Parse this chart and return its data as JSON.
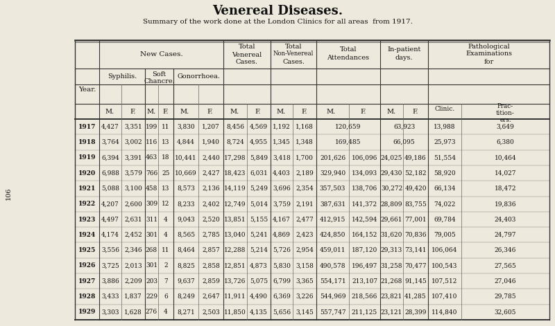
{
  "title": "Venereal Diseases.",
  "subtitle": "Summary of the work done at the London Clinics for all areas  from 1917.",
  "bg_color": "#ede9dc",
  "text_color": "#111111",
  "side_number": "106",
  "years": [
    "1917",
    "1918",
    "1919",
    "1920",
    "1921",
    "1922",
    "1923",
    "1924",
    "1925",
    "1926",
    "1927",
    "1928",
    "1929"
  ],
  "columns": {
    "syphilis_m": [
      "4,427",
      "3,764",
      "6,394",
      "6,988",
      "5,088",
      "4,207",
      "4,497",
      "4,174",
      "3,556",
      "3,725",
      "3,886",
      "3,433",
      "3,303"
    ],
    "syphilis_f": [
      "3,351",
      "3,002",
      "3,391",
      "3,579",
      "3,100",
      "2,600",
      "2,631",
      "2,452",
      "2,346",
      "2,013",
      "2,209",
      "1,837",
      "1,628"
    ],
    "soft_m": [
      "199",
      "116",
      "463",
      "766",
      "458",
      "309",
      "311",
      "301",
      "268",
      "301",
      "203",
      "229",
      "276"
    ],
    "soft_f": [
      "11",
      "13",
      "18",
      "25",
      "13",
      "12",
      "4",
      "4",
      "11",
      "2",
      "7",
      "6",
      "4"
    ],
    "gonorrhoea_m": [
      "3,830",
      "4,844",
      "10,441",
      "10,669",
      "8,573",
      "8,233",
      "9,043",
      "8,565",
      "8,464",
      "8,825",
      "9,637",
      "8,249",
      "8,271"
    ],
    "gonorrhoea_f": [
      "1,207",
      "1,940",
      "2,440",
      "2,427",
      "2,136",
      "2,402",
      "2,520",
      "2,785",
      "2,857",
      "2,858",
      "2,859",
      "2,647",
      "2,503"
    ],
    "total_ven_m": [
      "8,456",
      "8,724",
      "17,298",
      "18,423",
      "14,119",
      "12,749",
      "13,851",
      "13,040",
      "12,288",
      "12,851",
      "13,726",
      "11,911",
      "11,850"
    ],
    "total_ven_f": [
      "4,569",
      "4,955",
      "5,849",
      "6,031",
      "5,249",
      "5,014",
      "5,155",
      "5,241",
      "5,214",
      "4,873",
      "5,075",
      "4,490",
      "4,135"
    ],
    "total_nonven_m": [
      "1,192",
      "1,345",
      "3,418",
      "4,403",
      "3,696",
      "3,759",
      "4,167",
      "4,869",
      "5,726",
      "5,830",
      "6,799",
      "6,369",
      "5,656"
    ],
    "total_nonven_f": [
      "1,168",
      "1,348",
      "1,700",
      "2,189",
      "2,354",
      "2,191",
      "2,477",
      "2,423",
      "2,954",
      "3,158",
      "3,365",
      "3,226",
      "3,145"
    ],
    "total_attend_m": [
      "120,659",
      "169,485",
      "201,626",
      "329,940",
      "357,503",
      "387,631",
      "412,915",
      "424,850",
      "459,011",
      "490,578",
      "554,171",
      "544,969",
      "557,747"
    ],
    "total_attend_f": [
      "",
      "",
      "106,096",
      "134,093",
      "138,706",
      "141,372",
      "142,594",
      "164,152",
      "187,120",
      "196,497",
      "213,107",
      "218,566",
      "211,125"
    ],
    "inpatient_m": [
      "63,923",
      "66,095",
      "24,025",
      "29,430",
      "30,272",
      "28,809",
      "29,661",
      "31,620",
      "29,313",
      "31,258",
      "21,268",
      "23,821",
      "23,121"
    ],
    "inpatient_f": [
      "",
      "",
      "49,186",
      "52,182",
      "49,420",
      "83,755",
      "77,001",
      "70,836",
      "73,141",
      "70,477",
      "91,145",
      "41,285",
      "28,399"
    ],
    "path_clinic": [
      "13,988",
      "25,973",
      "51,554",
      "58,920",
      "66,134",
      "74,022",
      "69,784",
      "79,005",
      "106,064",
      "100,543",
      "107,512",
      "107,410",
      "114,840"
    ],
    "path_prac": [
      "3,649",
      "6,380",
      "10,464",
      "14,027",
      "18,472",
      "19,836",
      "24,403",
      "24,797",
      "26,346",
      "27,565",
      "27,046",
      "29,785",
      "32,605"
    ]
  }
}
